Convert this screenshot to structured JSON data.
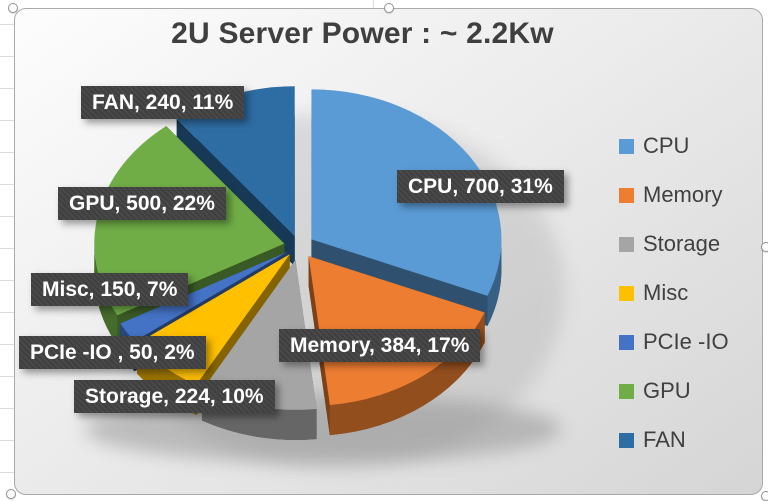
{
  "title": "2U Server Power : ~ 2.2Kw",
  "chart_data": {
    "type": "pie",
    "style": "3d-exploded",
    "title": "2U Server Power : ~ 2.2Kw",
    "total": 2248,
    "legend_position": "right",
    "label_format": "name, value, percent",
    "slices": [
      {
        "name": "CPU",
        "value": 700,
        "percent": "31%",
        "label": "CPU, 700, 31%",
        "color": "#5B9BD5"
      },
      {
        "name": "Memory",
        "value": 384,
        "percent": "17%",
        "label": "Memory, 384, 17%",
        "color": "#ED7D31"
      },
      {
        "name": "Storage",
        "value": 224,
        "percent": "10%",
        "label": "Storage, 224, 10%",
        "color": "#A5A5A5"
      },
      {
        "name": "Misc",
        "value": 150,
        "percent": "7%",
        "label": "Misc, 150, 7%",
        "color": "#FFC000"
      },
      {
        "name": "PCIe -IO",
        "value": 50,
        "percent": "2%",
        "label": "PCIe -IO , 50, 2%",
        "color": "#4472C4"
      },
      {
        "name": "GPU",
        "value": 500,
        "percent": "22%",
        "label": "GPU, 500, 22%",
        "color": "#70AD47"
      },
      {
        "name": "FAN",
        "value": 240,
        "percent": "11%",
        "label": "FAN, 240, 11%",
        "color": "#2E6DA4"
      }
    ]
  },
  "colors": {
    "label_bg": "#3F3F3F",
    "label_text": "#FFFFFF",
    "title_text": "#3F3F3F",
    "legend_text": "#404040",
    "chart_border": "#A9A9A9"
  }
}
